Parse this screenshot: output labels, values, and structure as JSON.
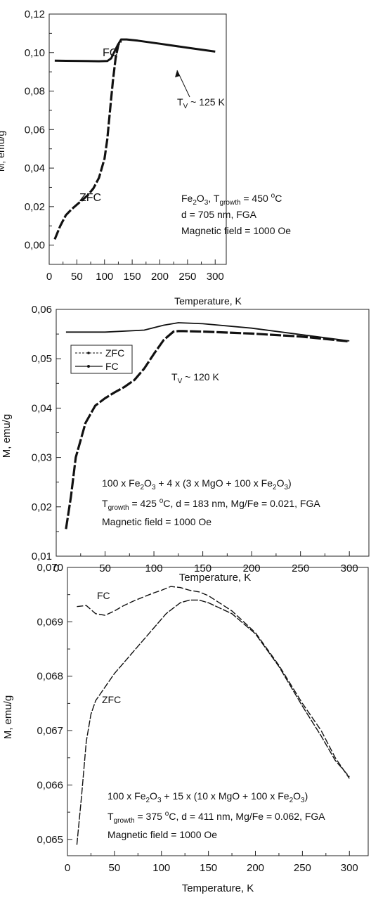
{
  "chart_data": [
    {
      "type": "line",
      "xlabel": "Temperature, K",
      "ylabel": "M, emu/g",
      "xlim": [
        0,
        320
      ],
      "ylim": [
        -0.01,
        0.12
      ],
      "xticks": [
        "0",
        "50",
        "100",
        "150",
        "200",
        "250",
        "300"
      ],
      "yticks": [
        "0,00",
        "0,02",
        "0,04",
        "0,06",
        "0,08",
        "0,10",
        "0,12"
      ],
      "xtick_values": [
        0,
        50,
        100,
        150,
        200,
        250,
        300
      ],
      "ytick_values": [
        0,
        0.02,
        0.04,
        0.06,
        0.08,
        0.1,
        0.12
      ],
      "grid": false,
      "series": [
        {
          "name": "FC",
          "x": [
            10,
            30,
            60,
            90,
            105,
            112,
            118,
            124,
            130,
            140,
            160,
            200,
            250,
            300
          ],
          "y": [
            0.0958,
            0.0957,
            0.0956,
            0.0955,
            0.0956,
            0.097,
            0.1005,
            0.104,
            0.1068,
            0.1068,
            0.1062,
            0.1046,
            0.1025,
            0.1005
          ]
        },
        {
          "name": "ZFC",
          "x": [
            10,
            20,
            30,
            40,
            50,
            60,
            70,
            80,
            90,
            100,
            105,
            110,
            115,
            120,
            125,
            130
          ],
          "y": [
            0.003,
            0.01,
            0.0155,
            0.0185,
            0.021,
            0.0235,
            0.026,
            0.0295,
            0.035,
            0.045,
            0.055,
            0.07,
            0.085,
            0.097,
            0.104,
            0.106
          ]
        }
      ],
      "text": {
        "fc_label": "FC",
        "zfc_label": "ZFC",
        "tv_base": "T",
        "tv_sub": "V",
        "tv_rest": " ~ 125 K",
        "info1_a": "Fe",
        "info1_b": "2",
        "info1_c": "O",
        "info1_d": "3",
        "info1_e": ", T",
        "info1_f": "growth",
        "info1_g": " = 450 ",
        "info1_h": "o",
        "info1_i": "C",
        "info2": "d = 705 nm, FGA",
        "info3": "Magnetic field = 1000 Oe"
      }
    },
    {
      "type": "line",
      "xlabel": "Temperature, K",
      "ylabel": "M, emu/g",
      "xlim": [
        0,
        320
      ],
      "ylim": [
        0.01,
        0.06
      ],
      "xticks": [
        "0",
        "50",
        "100",
        "150",
        "200",
        "250",
        "300"
      ],
      "yticks": [
        "0,01",
        "0,02",
        "0,03",
        "0,04",
        "0,05",
        "0,06"
      ],
      "xtick_values": [
        0,
        50,
        100,
        150,
        200,
        250,
        300
      ],
      "ytick_values": [
        0.01,
        0.02,
        0.03,
        0.04,
        0.05,
        0.06
      ],
      "grid": false,
      "legend_position": "upper-left",
      "series": [
        {
          "name": "ZFC",
          "x": [
            10,
            15,
            20,
            30,
            40,
            50,
            60,
            70,
            80,
            90,
            100,
            110,
            120,
            125,
            130,
            150,
            200,
            250,
            300
          ],
          "y": [
            0.0155,
            0.022,
            0.03,
            0.037,
            0.0405,
            0.042,
            0.0432,
            0.0443,
            0.0457,
            0.048,
            0.051,
            0.0538,
            0.0555,
            0.0556,
            0.0556,
            0.0555,
            0.0551,
            0.0545,
            0.0535
          ]
        },
        {
          "name": "FC",
          "x": [
            10,
            50,
            90,
            110,
            125,
            150,
            200,
            250,
            300
          ],
          "y": [
            0.0554,
            0.0554,
            0.0558,
            0.0568,
            0.0573,
            0.0571,
            0.0562,
            0.0549,
            0.0536
          ]
        }
      ],
      "text": {
        "legend_zfc": "ZFC",
        "legend_fc": "FC",
        "tv_base": "T",
        "tv_sub": "V",
        "tv_rest": " ~ 120 K",
        "info1_a": "100 x Fe",
        "info1_b": "2",
        "info1_c": "O",
        "info1_d": "3",
        "info1_e": " + 4 x (3 x MgO + 100 x Fe",
        "info1_f": "2",
        "info1_g": "O",
        "info1_h": "3",
        "info1_i": ")",
        "info2_a": "T",
        "info2_b": "growth",
        "info2_c": " = 425 ",
        "info2_d": "o",
        "info2_e": "C, d = 183 nm, Mg/Fe = 0.021, FGA",
        "info3": "Magnetic field = 1000 Oe"
      }
    },
    {
      "type": "line",
      "xlabel": "Temperature, K",
      "ylabel": "M, emu/g",
      "xlim": [
        0,
        320
      ],
      "ylim": [
        0.0647,
        0.07
      ],
      "xticks": [
        "0",
        "50",
        "100",
        "150",
        "200",
        "250",
        "300"
      ],
      "yticks": [
        "0,065",
        "0,066",
        "0,067",
        "0,068",
        "0,069",
        "0,070"
      ],
      "xtick_values": [
        0,
        50,
        100,
        150,
        200,
        250,
        300
      ],
      "ytick_values": [
        0.065,
        0.066,
        0.067,
        0.068,
        0.069,
        0.07
      ],
      "grid": false,
      "series": [
        {
          "name": "FC",
          "x": [
            10,
            20,
            30,
            40,
            50,
            60,
            70,
            80,
            90,
            100,
            110,
            120,
            130,
            140,
            150,
            175,
            200,
            225,
            250,
            270,
            285,
            300
          ],
          "y": [
            0.06928,
            0.0693,
            0.06915,
            0.06912,
            0.0692,
            0.0693,
            0.06938,
            0.06945,
            0.06952,
            0.06958,
            0.06965,
            0.06963,
            0.06958,
            0.06955,
            0.06948,
            0.0692,
            0.0688,
            0.0682,
            0.0675,
            0.067,
            0.0665,
            0.06612
          ]
        },
        {
          "name": "ZFC",
          "x": [
            10,
            15,
            20,
            25,
            30,
            40,
            50,
            60,
            75,
            90,
            105,
            120,
            130,
            140,
            150,
            175,
            200,
            225,
            250,
            270,
            285,
            300
          ],
          "y": [
            0.0649,
            0.0658,
            0.0668,
            0.0673,
            0.06755,
            0.0678,
            0.06805,
            0.06825,
            0.06855,
            0.06885,
            0.06915,
            0.06935,
            0.0694,
            0.0694,
            0.06935,
            0.06915,
            0.06878,
            0.06818,
            0.06745,
            0.0669,
            0.06645,
            0.06615
          ]
        }
      ],
      "text": {
        "fc_label": "FC",
        "zfc_label": "ZFC",
        "info1_a": "100 x Fe",
        "info1_b": "2",
        "info1_c": "O",
        "info1_d": "3",
        "info1_e": " + 15 x (10 x MgO + 100 x Fe",
        "info1_f": "2",
        "info1_g": "O",
        "info1_h": "3",
        "info1_i": ")",
        "info2_a": "T",
        "info2_b": "growth",
        "info2_c": " = 375 ",
        "info2_d": "o",
        "info2_e": "C, d = 411 nm, Mg/Fe = 0.062, FGA",
        "info3": "Magnetic field = 1000 Oe"
      }
    }
  ],
  "colors": {
    "line": "#111111",
    "axis": "#222222",
    "background": "#ffffff"
  }
}
